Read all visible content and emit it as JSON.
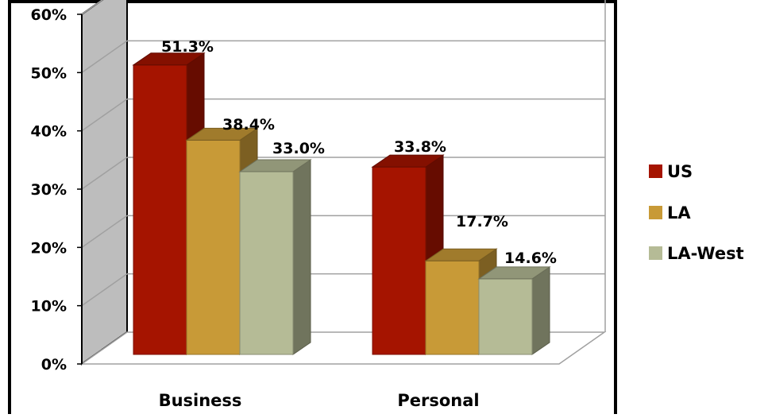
{
  "chart_data": {
    "type": "bar",
    "style": "3d-clustered-column",
    "categories": [
      "Business",
      "Personal"
    ],
    "series": [
      {
        "name": "US",
        "values": [
          51.3,
          33.8
        ],
        "labels": [
          "51.3%",
          "33.8%"
        ],
        "color": "#A51400"
      },
      {
        "name": "LA",
        "values": [
          38.4,
          17.7
        ],
        "labels": [
          "38.4%",
          "17.7%"
        ],
        "color": "#C89A37"
      },
      {
        "name": "LA-West",
        "values": [
          33.0,
          14.6
        ],
        "labels": [
          "33.0%",
          "14.6%"
        ],
        "color": "#B5BB96"
      }
    ],
    "ylim": [
      0,
      60
    ],
    "yticks": [
      "0%",
      "10%",
      "20%",
      "30%",
      "40%",
      "50%",
      "60%"
    ],
    "grid": true,
    "legend_position": "right",
    "title": "",
    "xlabel": "",
    "ylabel": ""
  },
  "colors": {
    "wall_side": "#BDBDBD",
    "gridline": "#A0A0A0",
    "border": "#000000"
  }
}
